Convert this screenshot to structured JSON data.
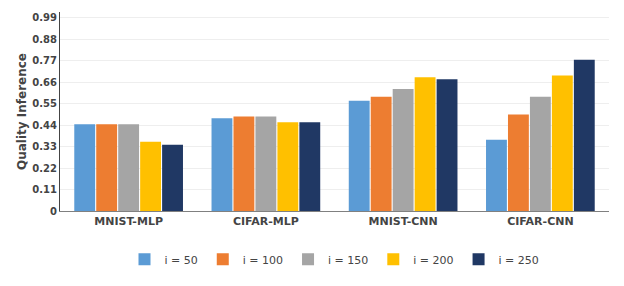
{
  "chart_data": {
    "type": "bar",
    "categories": [
      "MNIST-MLP",
      "CIFAR-MLP",
      "MNIST-CNN",
      "CIFAR-CNN"
    ],
    "series": [
      {
        "name": "i = 50",
        "color": "#5B9BD5",
        "values": [
          0.445,
          0.475,
          0.565,
          0.365
        ]
      },
      {
        "name": "i = 100",
        "color": "#ED7D31",
        "values": [
          0.445,
          0.485,
          0.585,
          0.495
        ]
      },
      {
        "name": "i = 150",
        "color": "#A5A5A5",
        "values": [
          0.445,
          0.485,
          0.625,
          0.585
        ]
      },
      {
        "name": "i = 200",
        "color": "#FFC000",
        "values": [
          0.355,
          0.455,
          0.685,
          0.695
        ]
      },
      {
        "name": "i = 250",
        "color": "#203864",
        "values": [
          0.34,
          0.455,
          0.675,
          0.775
        ]
      }
    ],
    "ylabel": "Quality Inference",
    "ylim": [
      0,
      1.02
    ],
    "yticks": [
      0,
      0.11,
      0.22,
      0.33,
      0.44,
      0.55,
      0.66,
      0.77,
      0.88,
      0.99
    ],
    "grid": true,
    "legend": "bottom"
  }
}
